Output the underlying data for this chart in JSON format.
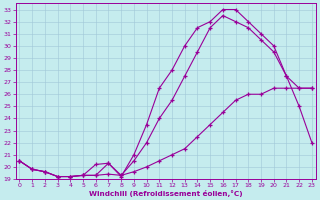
{
  "bg_color": "#c5ecee",
  "grid_color": "#a0c8d8",
  "line_color": "#990099",
  "xlim": [
    -0.3,
    23.3
  ],
  "ylim": [
    19.0,
    33.5
  ],
  "xticks": [
    0,
    1,
    2,
    3,
    4,
    5,
    6,
    7,
    8,
    9,
    10,
    11,
    12,
    13,
    14,
    15,
    16,
    17,
    18,
    19,
    20,
    21,
    22,
    23
  ],
  "yticks": [
    19,
    20,
    21,
    22,
    23,
    24,
    25,
    26,
    27,
    28,
    29,
    30,
    31,
    32,
    33
  ],
  "xlabel": "Windchill (Refroidissement éolien,°C)",
  "line1_x": [
    0,
    1,
    2,
    3,
    4,
    5,
    6,
    7,
    8,
    9,
    10,
    11,
    12,
    13,
    14,
    15,
    16,
    17,
    18,
    19,
    20,
    21,
    22,
    23
  ],
  "line1_y": [
    20.5,
    19.8,
    19.6,
    19.2,
    19.2,
    19.3,
    19.3,
    19.4,
    19.3,
    19.6,
    20.0,
    20.5,
    21.0,
    21.5,
    22.5,
    23.5,
    24.5,
    25.5,
    26.0,
    26.0,
    26.5,
    26.5,
    26.5,
    26.5
  ],
  "line2_x": [
    0,
    1,
    2,
    3,
    4,
    5,
    6,
    7,
    8,
    9,
    10,
    11,
    12,
    13,
    14,
    15,
    16,
    17,
    18,
    19,
    20,
    21,
    22,
    23
  ],
  "line2_y": [
    20.5,
    19.8,
    19.6,
    19.2,
    19.2,
    19.3,
    20.2,
    20.3,
    19.3,
    20.5,
    22.0,
    24.0,
    25.5,
    27.5,
    29.5,
    31.5,
    32.5,
    32.0,
    31.5,
    30.5,
    29.5,
    27.5,
    25.0,
    22.0
  ],
  "line3_x": [
    0,
    1,
    2,
    3,
    4,
    5,
    6,
    7,
    8,
    9,
    10,
    11,
    12,
    13,
    14,
    15,
    16,
    17,
    18,
    19,
    20,
    21,
    22,
    23
  ],
  "line3_y": [
    20.5,
    19.8,
    19.6,
    19.2,
    19.2,
    19.3,
    19.3,
    20.3,
    19.2,
    21.0,
    23.5,
    26.5,
    28.0,
    30.0,
    31.5,
    32.0,
    33.0,
    33.0,
    32.0,
    31.0,
    30.0,
    27.5,
    26.5,
    26.5
  ]
}
